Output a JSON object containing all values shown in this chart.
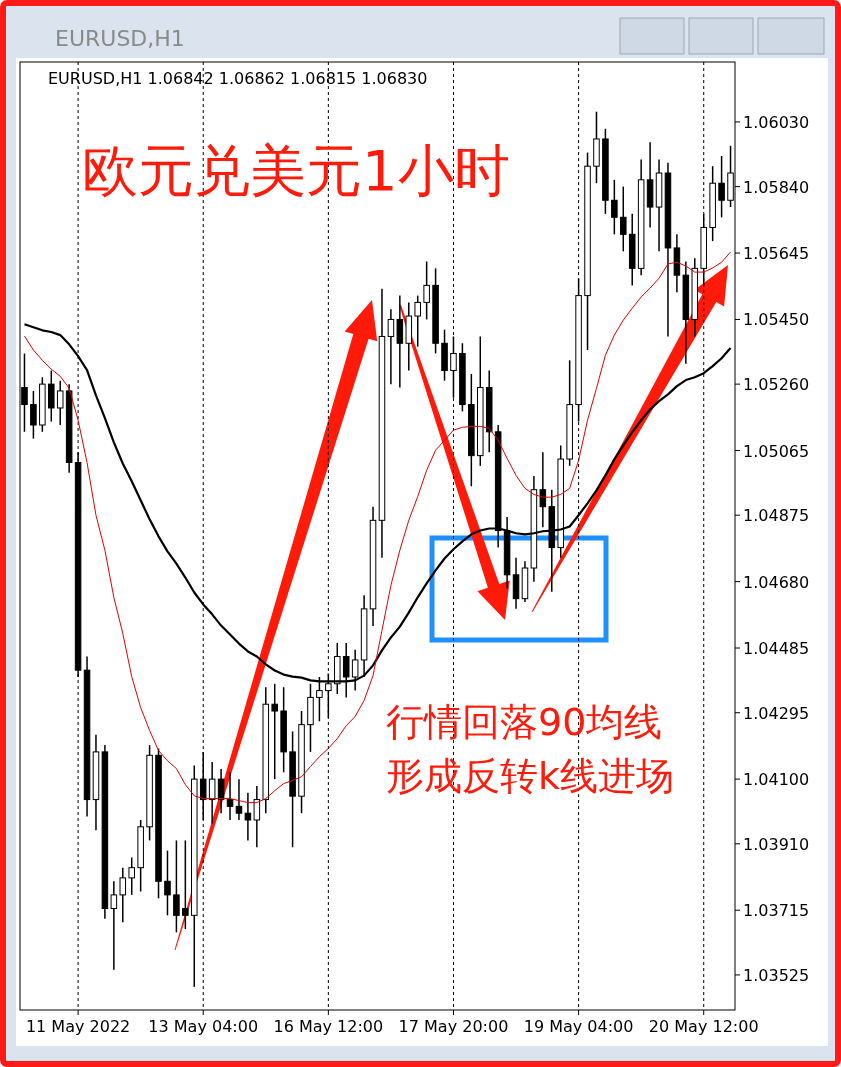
{
  "chart_data": {
    "type": "candlestick",
    "title": "EURUSD,H1",
    "subtitle": "EURUSD,H1  1.06842 1.06862 1.06815 1.06830",
    "annotations": [
      "欧元兑美元1小时",
      "行情回落90均线",
      "形成反转k线进场"
    ],
    "categories": [
      null,
      null,
      null,
      null,
      null,
      null,
      "11 May 2022",
      null,
      null,
      null,
      null,
      null,
      null,
      null,
      null,
      null,
      null,
      null,
      null,
      null,
      "13 May 04:00",
      null,
      null,
      null,
      null,
      null,
      null,
      null,
      null,
      null,
      null,
      null,
      null,
      null,
      "16 May 12:00",
      null,
      null,
      null,
      null,
      null,
      null,
      null,
      null,
      null,
      null,
      null,
      null,
      null,
      "17 May 20:00",
      null,
      null,
      null,
      null,
      null,
      null,
      null,
      null,
      null,
      null,
      null,
      null,
      null,
      "19 May 04:00",
      null,
      null,
      null,
      null,
      null,
      null,
      null,
      null,
      null,
      null,
      null,
      null,
      null,
      "20 May 12:00",
      null,
      null,
      null
    ],
    "ohlc": [
      [
        1.0525,
        1.0535,
        1.0512,
        1.052
      ],
      [
        1.052,
        1.0524,
        1.051,
        1.0514
      ],
      [
        1.0514,
        1.0528,
        1.0512,
        1.0526
      ],
      [
        1.0526,
        1.053,
        1.0515,
        1.0519
      ],
      [
        1.0519,
        1.0527,
        1.0514,
        1.0524
      ],
      [
        1.0524,
        1.0526,
        1.05,
        1.0503
      ],
      [
        1.0503,
        1.0506,
        1.044,
        1.0442
      ],
      [
        1.0442,
        1.0446,
        1.0399,
        1.0404
      ],
      [
        1.0404,
        1.0423,
        1.0395,
        1.0418
      ],
      [
        1.0418,
        1.042,
        1.0369,
        1.0372
      ],
      [
        1.0372,
        1.038,
        1.0354,
        1.0376
      ],
      [
        1.0376,
        1.0384,
        1.0368,
        1.0381
      ],
      [
        1.0381,
        1.0387,
        1.0376,
        1.0384
      ],
      [
        1.0384,
        1.0398,
        1.0377,
        1.0396
      ],
      [
        1.0396,
        1.042,
        1.0392,
        1.0417
      ],
      [
        1.0417,
        1.0419,
        1.0375,
        1.038
      ],
      [
        1.038,
        1.0389,
        1.037,
        1.0376
      ],
      [
        1.0376,
        1.0392,
        1.0365,
        1.037
      ],
      [
        1.0372,
        1.0392,
        1.0366,
        1.037
      ],
      [
        1.037,
        1.0414,
        1.0349,
        1.041
      ],
      [
        1.041,
        1.0418,
        1.0398,
        1.0404
      ],
      [
        1.0404,
        1.0415,
        1.0397,
        1.041
      ],
      [
        1.041,
        1.0413,
        1.04,
        1.0404
      ],
      [
        1.0404,
        1.0412,
        1.0398,
        1.0402
      ],
      [
        1.0402,
        1.041,
        1.0398,
        1.04
      ],
      [
        1.04,
        1.0406,
        1.0392,
        1.0398
      ],
      [
        1.0398,
        1.0408,
        1.039,
        1.0404
      ],
      [
        1.0404,
        1.0437,
        1.04,
        1.0432
      ],
      [
        1.0432,
        1.0438,
        1.041,
        1.043
      ],
      [
        1.043,
        1.0437,
        1.0412,
        1.0418
      ],
      [
        1.0418,
        1.0424,
        1.039,
        1.0405
      ],
      [
        1.0405,
        1.043,
        1.04,
        1.0426
      ],
      [
        1.0426,
        1.0438,
        1.0418,
        1.0434
      ],
      [
        1.0434,
        1.044,
        1.0427,
        1.0436
      ],
      [
        1.0436,
        1.0441,
        1.0428,
        1.0438
      ],
      [
        1.0438,
        1.045,
        1.0435,
        1.0446
      ],
      [
        1.0446,
        1.045,
        1.0434,
        1.044
      ],
      [
        1.044,
        1.0448,
        1.0436,
        1.0445
      ],
      [
        1.0445,
        1.0464,
        1.044,
        1.046
      ],
      [
        1.046,
        1.049,
        1.0455,
        1.0486
      ],
      [
        1.0486,
        1.0554,
        1.0475,
        1.054
      ],
      [
        1.054,
        1.0548,
        1.0526,
        1.0545
      ],
      [
        1.0545,
        1.0552,
        1.0525,
        1.0538
      ],
      [
        1.0538,
        1.055,
        1.053,
        1.0546
      ],
      [
        1.0546,
        1.0552,
        1.0537,
        1.055
      ],
      [
        1.055,
        1.0562,
        1.0545,
        1.0555
      ],
      [
        1.0555,
        1.056,
        1.0535,
        1.0538
      ],
      [
        1.0538,
        1.0542,
        1.0527,
        1.053
      ],
      [
        1.053,
        1.054,
        1.0522,
        1.0535
      ],
      [
        1.0535,
        1.0538,
        1.0518,
        1.052
      ],
      [
        1.052,
        1.0529,
        1.0496,
        1.0505
      ],
      [
        1.0505,
        1.054,
        1.0502,
        1.0525
      ],
      [
        1.0525,
        1.053,
        1.0506,
        1.0512
      ],
      [
        1.0512,
        1.0514,
        1.0478,
        1.0483
      ],
      [
        1.0483,
        1.0487,
        1.0466,
        1.047
      ],
      [
        1.047,
        1.0475,
        1.046,
        1.0463
      ],
      [
        1.0463,
        1.0474,
        1.0462,
        1.0472
      ],
      [
        1.0472,
        1.0499,
        1.0468,
        1.0495
      ],
      [
        1.0495,
        1.0506,
        1.0484,
        1.049
      ],
      [
        1.049,
        1.0495,
        1.0465,
        1.0478
      ],
      [
        1.0478,
        1.0508,
        1.0475,
        1.0504
      ],
      [
        1.0504,
        1.0533,
        1.0502,
        1.052
      ],
      [
        1.052,
        1.0557,
        1.0515,
        1.0552
      ],
      [
        1.0552,
        1.0594,
        1.0536,
        1.059
      ],
      [
        1.059,
        1.0606,
        1.0585,
        1.0598
      ],
      [
        1.0598,
        1.0601,
        1.0576,
        1.058
      ],
      [
        1.058,
        1.0586,
        1.057,
        1.0575
      ],
      [
        1.0575,
        1.0584,
        1.0565,
        1.057
      ],
      [
        1.057,
        1.0576,
        1.0555,
        1.056
      ],
      [
        1.056,
        1.0592,
        1.0558,
        1.0586
      ],
      [
        1.0586,
        1.0597,
        1.0572,
        1.0578
      ],
      [
        1.0578,
        1.0592,
        1.0565,
        1.0588
      ],
      [
        1.0588,
        1.0591,
        1.054,
        1.0566
      ],
      [
        1.0566,
        1.057,
        1.0553,
        1.0558
      ],
      [
        1.0558,
        1.0562,
        1.0532,
        1.0545
      ],
      [
        1.0545,
        1.0563,
        1.054,
        1.056
      ],
      [
        1.056,
        1.0576,
        1.0555,
        1.0572
      ],
      [
        1.0572,
        1.059,
        1.0568,
        1.0585
      ],
      [
        1.0585,
        1.0593,
        1.0575,
        1.058
      ],
      [
        1.058,
        1.0596,
        1.0578,
        1.0588
      ]
    ],
    "series": [
      {
        "type": "line",
        "color": "#000000",
        "values": [
          1.05436,
          1.05427,
          1.05418,
          1.05413,
          1.05404,
          1.05377,
          1.05342,
          1.05301,
          1.05227,
          1.0516,
          1.05089,
          1.05027,
          1.04975,
          1.04919,
          1.04863,
          1.04813,
          1.04769,
          1.04733,
          1.04692,
          1.04648,
          1.04613,
          1.04584,
          1.04551,
          1.04525,
          1.04498,
          1.04475,
          1.0446,
          1.04437,
          1.04419,
          1.04407,
          1.04401,
          1.04398,
          1.0439,
          1.04387,
          1.04387,
          1.04387,
          1.04387,
          1.0439,
          1.04404,
          1.04434,
          1.04478,
          1.04516,
          1.04548,
          1.04589,
          1.04634,
          1.04675,
          1.04713,
          1.04748,
          1.04775,
          1.04798,
          1.04819,
          1.0483,
          1.04836,
          1.04836,
          1.0483,
          1.04822,
          1.04819,
          1.04822,
          1.04828,
          1.0483,
          1.04833,
          1.04842,
          1.04875,
          1.0491,
          1.04948,
          1.04992,
          1.05039,
          1.0508,
          1.05119,
          1.05154,
          1.05186,
          1.0521,
          1.0523,
          1.05254,
          1.05272,
          1.0528,
          1.05292,
          1.05313,
          1.05336,
          1.05366
        ]
      },
      {
        "type": "line",
        "color": "#e00000",
        "values": [
          1.05401,
          1.0536,
          1.0533,
          1.05304,
          1.05283,
          1.05248,
          1.05154,
          1.0503,
          1.04875,
          1.04772,
          1.04634,
          1.04528,
          1.04401,
          1.0431,
          1.04243,
          1.04184,
          1.04154,
          1.04131,
          1.04084,
          1.04051,
          1.04043,
          1.04043,
          1.04043,
          1.04043,
          1.04037,
          1.04031,
          1.04031,
          1.04043,
          1.04066,
          1.04087,
          1.04096,
          1.04107,
          1.04137,
          1.04166,
          1.0419,
          1.04219,
          1.04257,
          1.04284,
          1.04331,
          1.04404,
          1.04537,
          1.04669,
          1.04772,
          1.0486,
          1.0493,
          1.05007,
          1.05066,
          1.05095,
          1.05125,
          1.05133,
          1.05136,
          1.05136,
          1.0513,
          1.05095,
          1.05042,
          1.04992,
          1.04954,
          1.04936,
          1.04928,
          1.04928,
          1.04936,
          1.04954,
          1.05036,
          1.05154,
          1.05248,
          1.05345,
          1.05404,
          1.05448,
          1.05483,
          1.05516,
          1.05542,
          1.05571,
          1.05613,
          1.05618,
          1.05607,
          1.05589,
          1.05589,
          1.05601,
          1.05618,
          1.05648
        ]
      }
    ],
    "ylim": [
      1.03422,
      1.06206
    ],
    "yticks": [
      {
        "value": 1.0603,
        "label": "1.06030"
      },
      {
        "value": 1.0584,
        "label": "1.05840"
      },
      1.05645,
      {
        "value": 1.0545,
        "label": "1.05450"
      },
      {
        "value": 1.0526,
        "label": "1.05260"
      },
      1.05065,
      1.04875,
      {
        "value": 1.0468,
        "label": "1.04680"
      },
      1.04485,
      1.04295,
      {
        "value": 1.041,
        "label": "1.04100"
      },
      {
        "value": 1.0391,
        "label": "1.03910"
      },
      1.03715,
      1.03525
    ],
    "grid": "x"
  }
}
